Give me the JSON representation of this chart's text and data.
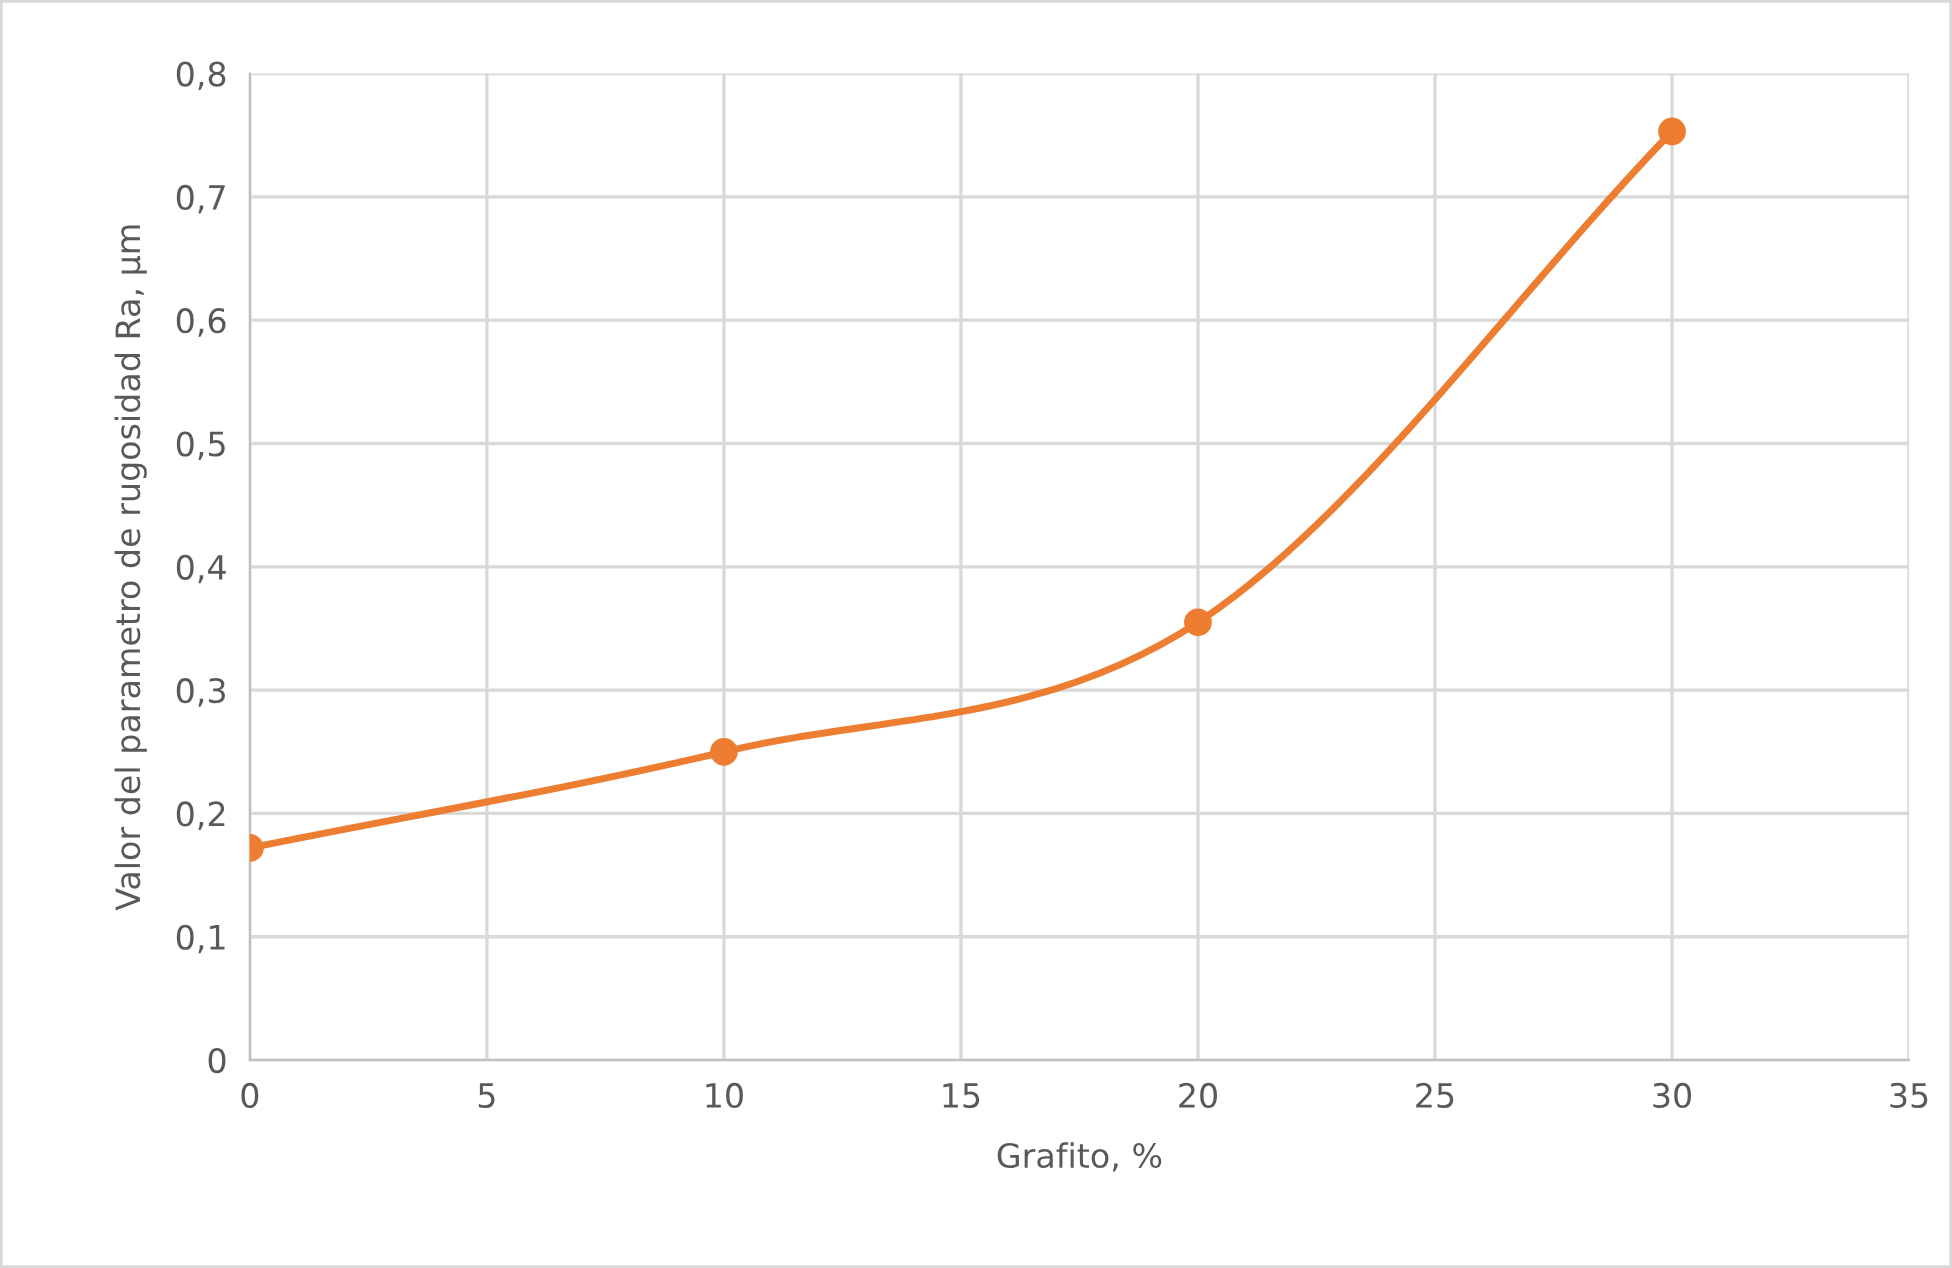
{
  "chart_data": {
    "type": "line",
    "xlabel": "Grafito, %",
    "ylabel": "Valor del parametro de rugosidad Ra, µm",
    "x": [
      0,
      10,
      20,
      30
    ],
    "series": [
      {
        "color": "#ed7d31",
        "values": [
          0.172,
          0.25,
          0.355,
          0.753
        ]
      }
    ],
    "xlim": [
      0,
      35
    ],
    "xticks": [
      0,
      5,
      10,
      15,
      20,
      25,
      30,
      35
    ],
    "ylim": [
      0,
      0.8
    ],
    "yticks": [
      0,
      {
        "value": 0.1,
        "label": "0,1"
      },
      {
        "value": 0.2,
        "label": "0,2"
      },
      {
        "value": 0.3,
        "label": "0,3"
      },
      {
        "value": 0.4,
        "label": "0,4"
      },
      {
        "value": 0.5,
        "label": "0,5"
      },
      {
        "value": 0.6,
        "label": "0,6"
      },
      {
        "value": 0.7,
        "label": "0,7"
      },
      {
        "value": 0.8,
        "label": "0,8"
      }
    ],
    "grid": true,
    "marker": "circle",
    "line_style": "solid",
    "legend": false
  }
}
